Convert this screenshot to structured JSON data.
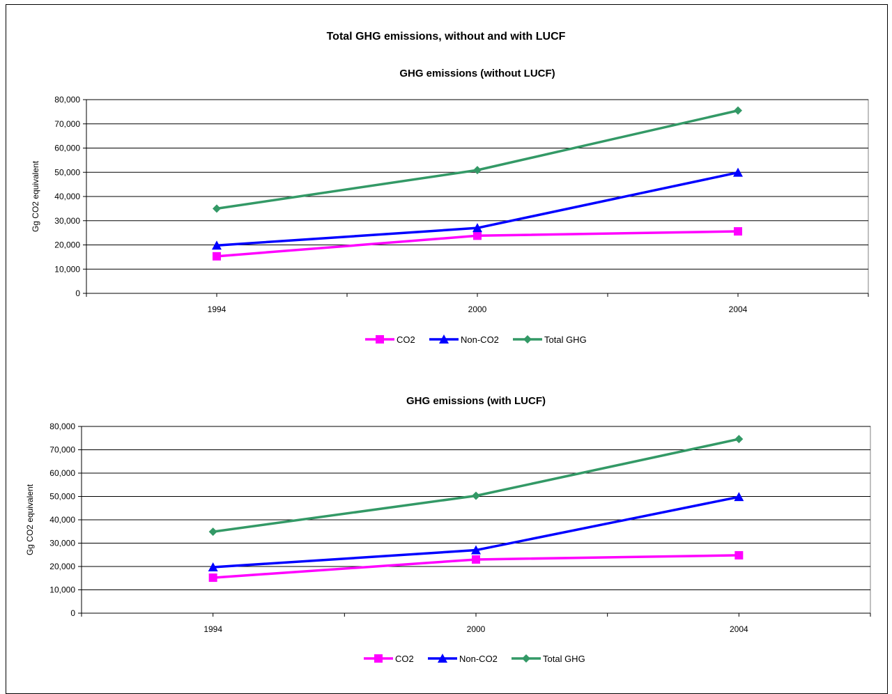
{
  "title": "Total GHG emissions, without and with LUCF",
  "colors": {
    "CO2": "#ff00ff",
    "Non-CO2": "#0000ff",
    "Total GHG": "#339966"
  },
  "chart_data": [
    {
      "type": "line",
      "title": "GHG emissions (without LUCF)",
      "ylabel": "Gg CO2 equivalent",
      "xlabel": "",
      "categories": [
        "1994",
        "2000",
        "2004"
      ],
      "ylim": [
        0,
        80000
      ],
      "ytick_labels": [
        "0",
        "10,000",
        "20,000",
        "30,000",
        "40,000",
        "50,000",
        "60,000",
        "70,000",
        "80,000"
      ],
      "grid": true,
      "legend_position": "bottom",
      "series": [
        {
          "name": "CO2",
          "marker": "square",
          "values": [
            15300,
            23800,
            25600
          ]
        },
        {
          "name": "Non-CO2",
          "marker": "triangle",
          "values": [
            19800,
            27000,
            49900
          ]
        },
        {
          "name": "Total GHG",
          "marker": "diamond",
          "values": [
            35000,
            50900,
            75500
          ]
        }
      ]
    },
    {
      "type": "line",
      "title": "GHG emissions (with LUCF)",
      "ylabel": "Gg CO2 equivalent",
      "xlabel": "",
      "categories": [
        "1994",
        "2000",
        "2004"
      ],
      "ylim": [
        0,
        80000
      ],
      "ytick_labels": [
        "0",
        "10,000",
        "20,000",
        "30,000",
        "40,000",
        "50,000",
        "60,000",
        "70,000",
        "80,000"
      ],
      "grid": true,
      "legend_position": "bottom",
      "series": [
        {
          "name": "CO2",
          "marker": "square",
          "values": [
            15200,
            23000,
            24800
          ]
        },
        {
          "name": "Non-CO2",
          "marker": "triangle",
          "values": [
            19700,
            27000,
            49800
          ]
        },
        {
          "name": "Total GHG",
          "marker": "diamond",
          "values": [
            34900,
            50300,
            74600
          ]
        }
      ]
    }
  ]
}
